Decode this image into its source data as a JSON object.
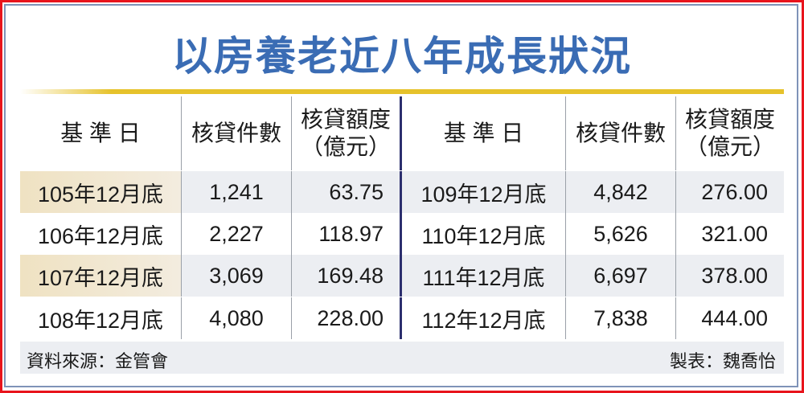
{
  "title": "以房養老近八年成長狀況",
  "colors": {
    "title": "#3a6cb4",
    "accent_line": "#e6c22b",
    "divider": "#2c2f6e",
    "border": "#e8141c"
  },
  "chart_data": {
    "type": "table",
    "title": "以房養老近八年成長狀況",
    "headers": [
      "基 準 日",
      "核貸件數",
      "核貸額度",
      "（億元）"
    ],
    "rows": [
      [
        "105年12月底",
        "1,241",
        "63.75"
      ],
      [
        "106年12月底",
        "2,227",
        "118.97"
      ],
      [
        "107年12月底",
        "3,069",
        "169.48"
      ],
      [
        "108年12月底",
        "4,080",
        "228.00"
      ],
      [
        "109年12月底",
        "4,842",
        "276.00"
      ],
      [
        "110年12月底",
        "5,626",
        "321.00"
      ],
      [
        "111年12月底",
        "6,697",
        "378.00"
      ],
      [
        "112年12月底",
        "7,838",
        "444.00"
      ]
    ]
  },
  "footer": {
    "source": "資料來源：金管會",
    "credit": "製表：魏喬怡"
  }
}
